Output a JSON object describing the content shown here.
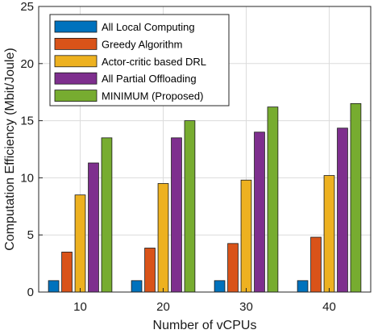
{
  "chart_data": {
    "type": "bar",
    "xlabel": "Number of vCPUs",
    "ylabel": "Computation Efficiency (Mbit/Joule)",
    "categories": [
      "10",
      "20",
      "30",
      "40"
    ],
    "ylim": [
      0,
      25
    ],
    "yticks": [
      "0",
      "5",
      "10",
      "15",
      "20",
      "25"
    ],
    "grid": true,
    "legend_position": "top-left",
    "series": [
      {
        "name": "All Local Computing",
        "color": "#0072BD",
        "values": [
          1.0,
          1.0,
          1.0,
          1.0
        ]
      },
      {
        "name": "Greedy Algorithm",
        "color": "#D95319",
        "values": [
          3.5,
          3.85,
          4.25,
          4.8
        ]
      },
      {
        "name": "Actor-critic based DRL",
        "color": "#EDB120",
        "values": [
          8.5,
          9.5,
          9.8,
          10.2
        ]
      },
      {
        "name": "All Partial Offloading",
        "color": "#7E2F8E",
        "values": [
          11.3,
          13.5,
          14.0,
          14.35
        ]
      },
      {
        "name": "MINIMUM (Proposed)",
        "color": "#77AC30",
        "values": [
          13.5,
          15.0,
          16.2,
          16.5
        ]
      }
    ]
  }
}
